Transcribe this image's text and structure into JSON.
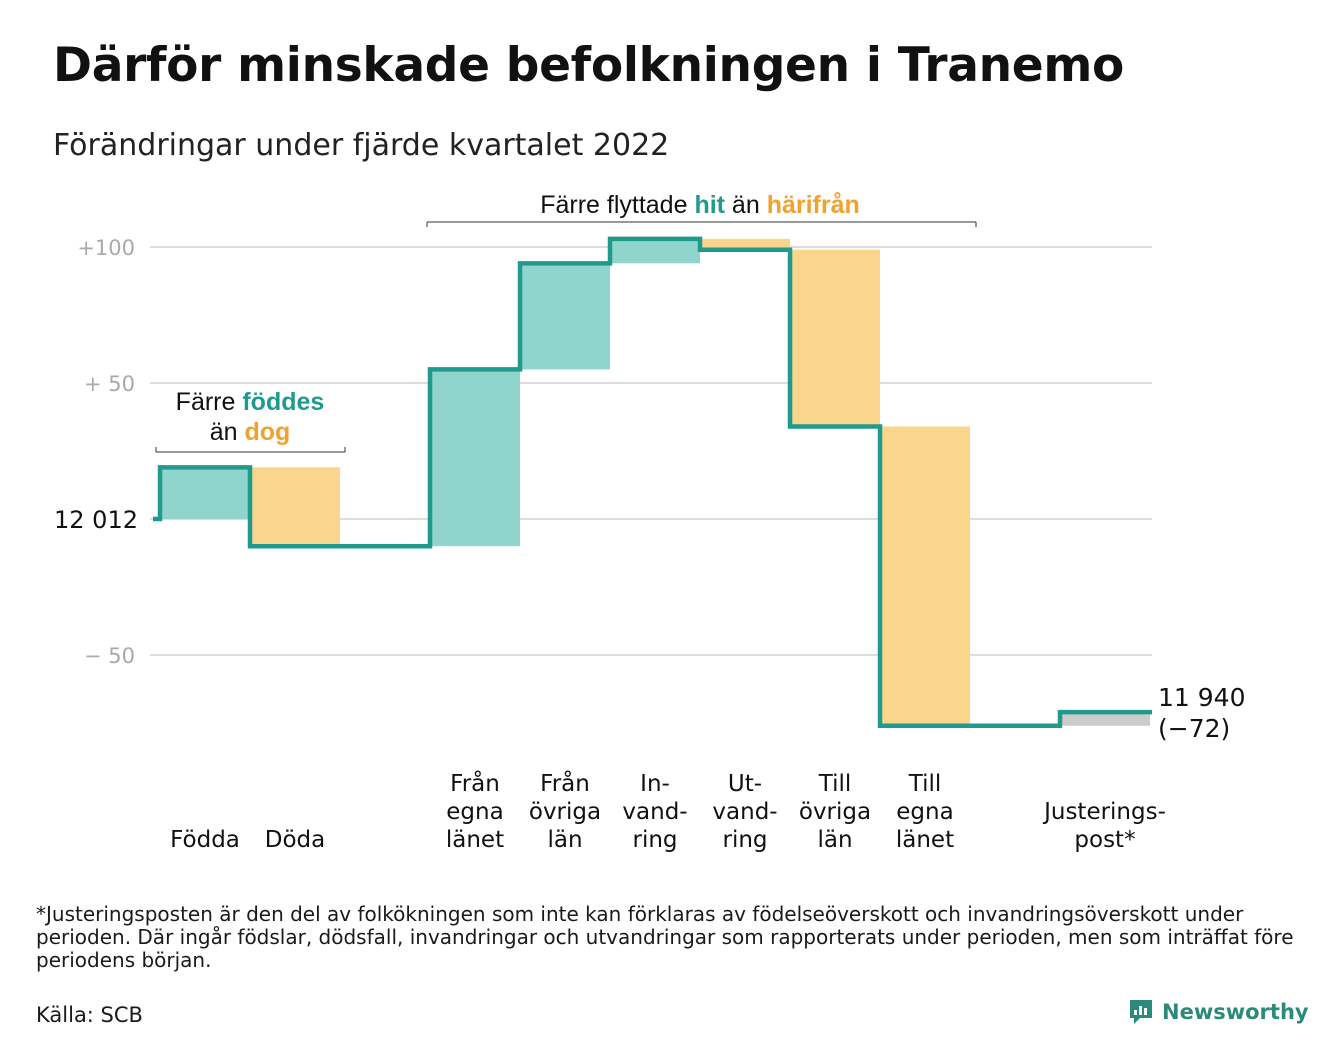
{
  "title": "Därför minskade befolkningen i Tranemo",
  "subtitle": "Förändringar under fjärde kvartalet 2022",
  "annotations": {
    "births_deaths": {
      "line1_prefix": "Färre ",
      "line1_highlight": "föddes",
      "line2_prefix": "än ",
      "line2_highlight": "dog"
    },
    "moves": {
      "prefix": "Färre flyttade ",
      "hit": "hit",
      "middle": " än ",
      "harifran": "härifrån"
    }
  },
  "colors": {
    "positive": "#8fd5cd",
    "negative": "#fad58c",
    "line": "#1f9a8c",
    "adjustment": "#cccccc",
    "positive_text": "#1f9a8c",
    "negative_text": "#f0a22e",
    "grid": "#dddddd",
    "tick": "#aaaaaa"
  },
  "chart_data": {
    "type": "waterfall",
    "start_label": "12 012",
    "start_value": 12012,
    "end_label_value": "11 940",
    "end_label_change": "(−72)",
    "y_ticks": [
      {
        "value": 100,
        "label": "+100"
      },
      {
        "value": 50,
        "label": "+ 50"
      },
      {
        "value": -50,
        "label": "− 50"
      }
    ],
    "ylim": [
      -80,
      105
    ],
    "steps": [
      {
        "label": [
          "Födda"
        ],
        "value": 19,
        "kind": "positive"
      },
      {
        "label": [
          "Döda"
        ],
        "value": -29,
        "kind": "negative"
      },
      {
        "label": [],
        "value": 0,
        "kind": "none"
      },
      {
        "label": [
          "Från",
          "egna",
          "länet"
        ],
        "value": 65,
        "kind": "positive"
      },
      {
        "label": [
          "Från",
          "övriga",
          "län"
        ],
        "value": 39,
        "kind": "positive"
      },
      {
        "label": [
          "In-",
          "vand-",
          "ring"
        ],
        "value": 9,
        "kind": "positive"
      },
      {
        "label": [
          "Ut-",
          "vand-",
          "ring"
        ],
        "value": -4,
        "kind": "negative"
      },
      {
        "label": [
          "Till",
          "övriga",
          "län"
        ],
        "value": -65,
        "kind": "negative"
      },
      {
        "label": [
          "Till",
          "egna",
          "länet"
        ],
        "value": -110,
        "kind": "negative"
      },
      {
        "label": [],
        "value": 0,
        "kind": "none"
      },
      {
        "label": [
          "Justerings-",
          "post*"
        ],
        "value": 5,
        "kind": "adjustment"
      }
    ]
  },
  "footnote": "*Justeringsposten är den del av folkökningen som inte kan förklaras av födelseöverskott och invandringsöverskott under perioden. Där ingår födslar, dödsfall, invandringar och utvandringar som rapporterats under perioden, men som inträffat före periodens början.",
  "source": "Källa: SCB",
  "logo": {
    "text": "Newsworthy",
    "icon": "bar-chart-speech-icon"
  }
}
